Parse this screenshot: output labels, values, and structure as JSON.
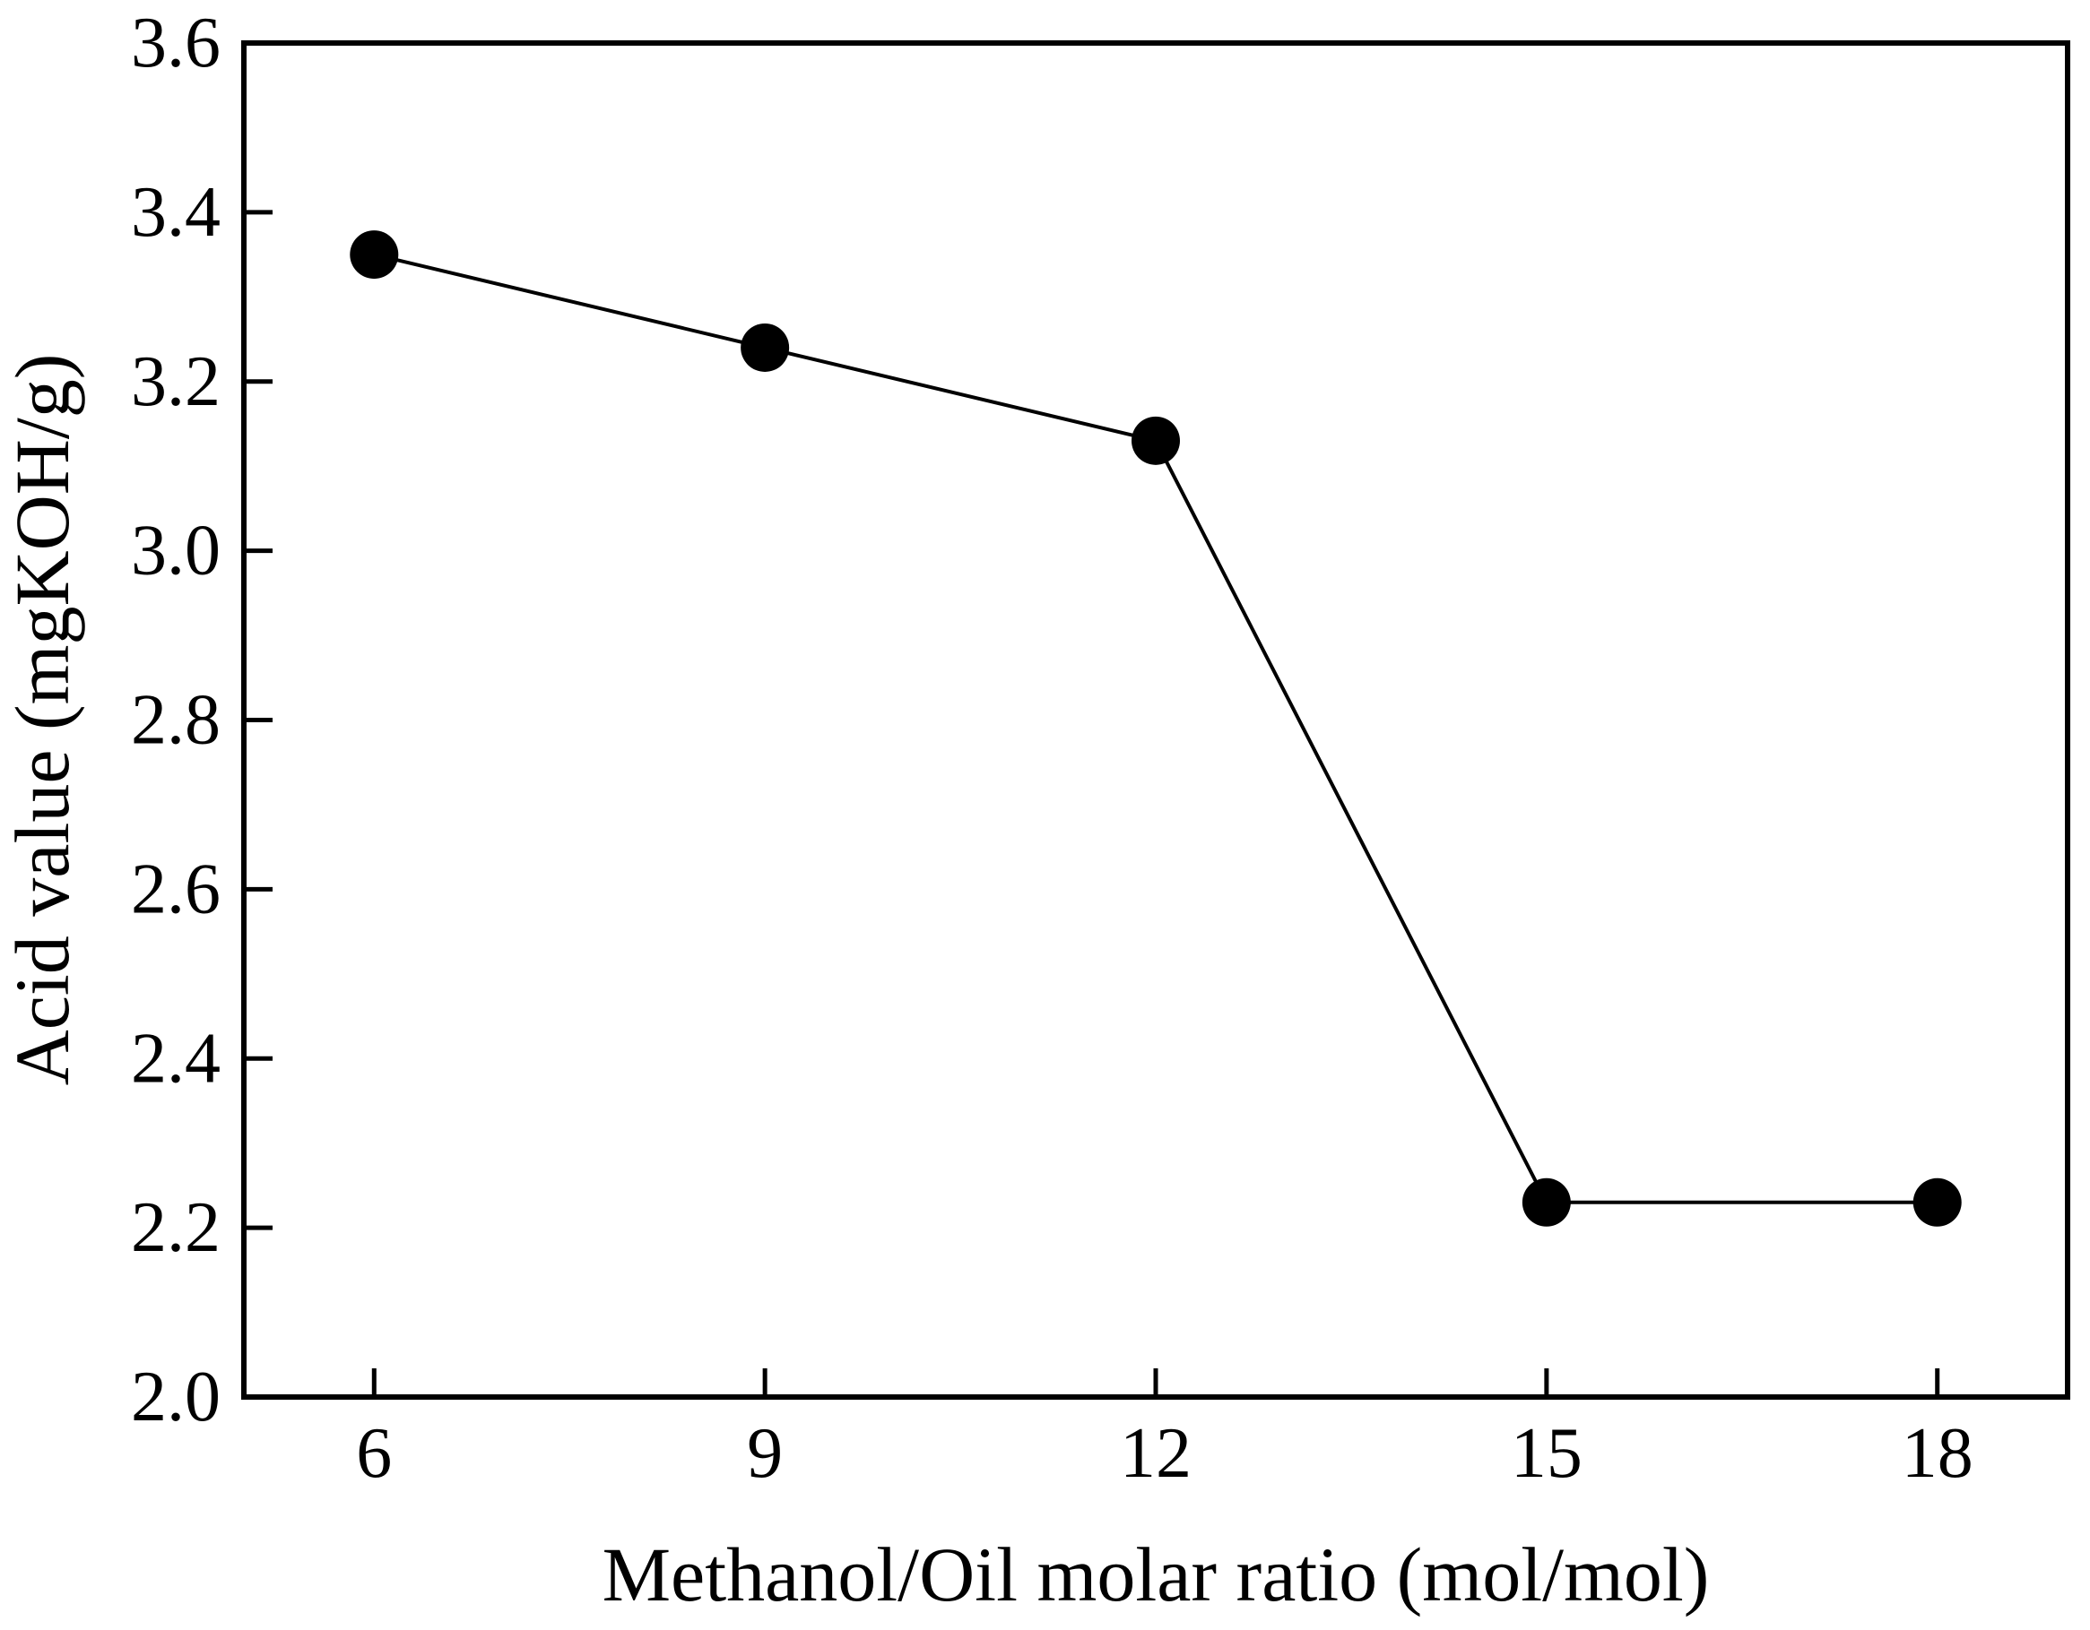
{
  "chart_data": {
    "type": "line",
    "title": "",
    "xlabel": "Methanol/Oil molar ratio (mol/mol)",
    "ylabel": "Acid value (mgKOH/g)",
    "series": [
      {
        "name": "Acid value",
        "x": [
          6,
          9,
          12,
          15,
          18
        ],
        "y": [
          3.35,
          3.24,
          3.13,
          2.23,
          2.23
        ]
      }
    ],
    "xlim": [
      5,
      19
    ],
    "ylim": [
      2.0,
      3.6
    ],
    "x_ticks": [
      6,
      9,
      12,
      15,
      18
    ],
    "x_tick_labels": [
      "6",
      "9",
      "12",
      "15",
      "18"
    ],
    "y_ticks": [
      3.6,
      3.4,
      3.2,
      3.0,
      2.8,
      2.6,
      2.4,
      2.2,
      2.0
    ],
    "y_tick_labels": [
      "3.6",
      "3.4",
      "3.2",
      "3.0",
      "2.8",
      "2.6",
      "2.4",
      "2.2",
      "2.0"
    ],
    "grid": false,
    "legend_position": "none",
    "marker": "filled-circle",
    "line_style": "solid",
    "colors": {
      "line": "#000000",
      "marker": "#000000",
      "frame": "#000000",
      "text": "#000000",
      "background": "#ffffff"
    }
  }
}
